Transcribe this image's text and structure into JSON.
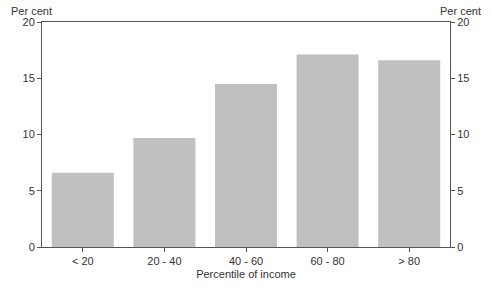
{
  "chart_data": {
    "type": "bar",
    "xlabel": "Percentile of income",
    "ylabel": "Per cent",
    "y2label": "Per cent",
    "categories": [
      "< 20",
      "20 - 40",
      "40 - 60",
      "60 - 80",
      "> 80"
    ],
    "values": [
      6.6,
      9.7,
      14.5,
      17.1,
      16.6
    ],
    "color": "#c0c0c0",
    "ylim": [
      0,
      20
    ],
    "yticks": [
      0,
      5,
      10,
      15,
      20
    ],
    "y2lim": [
      0,
      20
    ],
    "y2ticks": [
      0,
      5,
      10,
      15,
      20
    ],
    "grid": false
  }
}
